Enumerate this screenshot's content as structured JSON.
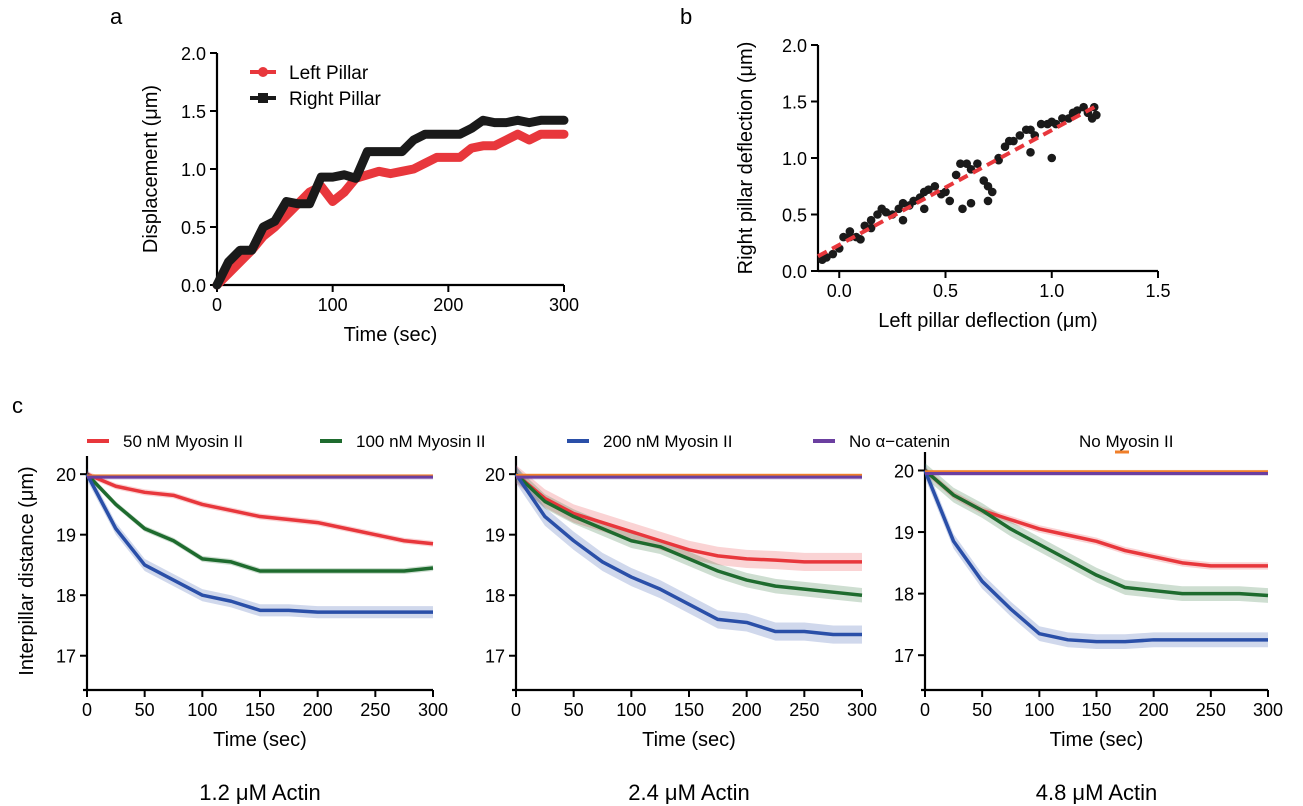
{
  "panel_labels": {
    "a": "a",
    "b": "b",
    "c": "c"
  },
  "legend_c": [
    {
      "label": "50 nM Myosin II",
      "color": "#e8373c"
    },
    {
      "label": "100 nM Myosin II",
      "color": "#1e6b2e"
    },
    {
      "label": "200 nM Myosin II",
      "color": "#2a4fa8"
    },
    {
      "label": "No α−catenin",
      "color": "#6b3fa0"
    },
    {
      "label": "No Myosin II",
      "color": "#f07f2a"
    }
  ],
  "chart_data": [
    {
      "id": "a",
      "type": "line",
      "xlabel": "Time (sec)",
      "ylabel": "Displacement (μm)",
      "xlim": [
        0,
        300
      ],
      "ylim": [
        0,
        2.0
      ],
      "xticks": [
        "0",
        "100",
        "200",
        "300"
      ],
      "yticks": [
        "0.0",
        "0.5",
        "1.0",
        "1.5",
        "2.0"
      ],
      "legend_position": "top-left",
      "series": [
        {
          "name": "Left Pillar",
          "color": "#e8373c",
          "x": [
            0,
            10,
            20,
            30,
            40,
            50,
            60,
            70,
            80,
            90,
            100,
            110,
            120,
            130,
            140,
            150,
            160,
            170,
            180,
            190,
            200,
            210,
            220,
            230,
            240,
            250,
            260,
            270,
            280,
            290,
            300
          ],
          "y": [
            0.0,
            0.1,
            0.2,
            0.3,
            0.42,
            0.5,
            0.6,
            0.7,
            0.8,
            0.85,
            0.72,
            0.8,
            0.92,
            0.95,
            0.98,
            0.96,
            0.98,
            1.0,
            1.05,
            1.1,
            1.1,
            1.1,
            1.18,
            1.2,
            1.2,
            1.25,
            1.3,
            1.25,
            1.3,
            1.3,
            1.3
          ]
        },
        {
          "name": "Right Pillar",
          "color": "#1a1a1a",
          "x": [
            0,
            10,
            20,
            30,
            40,
            50,
            60,
            70,
            80,
            90,
            100,
            110,
            120,
            130,
            140,
            150,
            160,
            170,
            180,
            190,
            200,
            210,
            220,
            230,
            240,
            250,
            260,
            270,
            280,
            290,
            300
          ],
          "y": [
            0.0,
            0.2,
            0.3,
            0.3,
            0.5,
            0.55,
            0.72,
            0.7,
            0.7,
            0.93,
            0.93,
            0.95,
            0.92,
            1.15,
            1.15,
            1.15,
            1.15,
            1.25,
            1.3,
            1.3,
            1.3,
            1.3,
            1.35,
            1.42,
            1.4,
            1.4,
            1.42,
            1.4,
            1.42,
            1.42,
            1.42
          ]
        }
      ]
    },
    {
      "id": "b",
      "type": "scatter",
      "xlabel": "Left pillar deflection (μm)",
      "ylabel": "Right pillar deflection (μm)",
      "xlim": [
        -0.1,
        1.5
      ],
      "ylim": [
        0,
        2.0
      ],
      "xticks": [
        "0.0",
        "0.5",
        "1.0",
        "1.5"
      ],
      "yticks": [
        "0.0",
        "0.5",
        "1.0",
        "1.5",
        "2.0"
      ],
      "fit_line": {
        "color": "#e8373c",
        "x": [
          -0.1,
          1.22
        ],
        "y": [
          0.13,
          1.47
        ]
      },
      "points": {
        "x": [
          -0.08,
          -0.06,
          -0.03,
          0.0,
          0.02,
          0.05,
          0.08,
          0.1,
          0.12,
          0.15,
          0.18,
          0.2,
          0.22,
          0.25,
          0.28,
          0.3,
          0.33,
          0.35,
          0.38,
          0.4,
          0.42,
          0.45,
          0.48,
          0.5,
          0.52,
          0.55,
          0.57,
          0.6,
          0.62,
          0.65,
          0.68,
          0.7,
          0.72,
          0.75,
          0.78,
          0.8,
          0.82,
          0.85,
          0.88,
          0.9,
          0.92,
          0.95,
          0.98,
          1.0,
          1.02,
          1.05,
          1.08,
          1.1,
          1.12,
          1.15,
          1.17,
          1.19,
          1.2,
          1.21,
          0.58,
          0.7,
          0.75,
          0.4,
          0.3,
          0.9,
          1.0,
          0.62,
          0.15,
          0.05
        ],
        "y": [
          0.1,
          0.12,
          0.15,
          0.2,
          0.3,
          0.35,
          0.3,
          0.28,
          0.4,
          0.45,
          0.5,
          0.55,
          0.52,
          0.5,
          0.55,
          0.6,
          0.58,
          0.62,
          0.65,
          0.7,
          0.72,
          0.75,
          0.68,
          0.7,
          0.62,
          0.85,
          0.95,
          0.95,
          0.9,
          0.95,
          0.8,
          0.75,
          0.7,
          1.0,
          1.1,
          1.15,
          1.15,
          1.2,
          1.25,
          1.25,
          1.2,
          1.3,
          1.3,
          1.32,
          1.3,
          1.35,
          1.35,
          1.4,
          1.42,
          1.45,
          1.4,
          1.35,
          1.45,
          1.38,
          0.55,
          0.62,
          0.98,
          0.55,
          0.45,
          1.05,
          1.0,
          0.6,
          0.38,
          0.3
        ]
      }
    },
    {
      "id": "c1",
      "type": "line",
      "caption": "1.2 μM Actin",
      "xlabel": "Time (sec)",
      "ylabel": "Interpillar distance (μm)",
      "xlim": [
        0,
        300
      ],
      "ylim": [
        16.5,
        20.3
      ],
      "xticks": [
        "0",
        "50",
        "100",
        "150",
        "200",
        "250",
        "300"
      ],
      "yticks": [
        "17",
        "18",
        "19",
        "20"
      ],
      "x": [
        0,
        25,
        50,
        75,
        100,
        125,
        150,
        175,
        200,
        225,
        250,
        275,
        300
      ],
      "series": [
        {
          "name": "50 nM Myosin II",
          "color": "#e8373c",
          "values": [
            20.0,
            19.8,
            19.7,
            19.65,
            19.5,
            19.4,
            19.3,
            19.25,
            19.2,
            19.1,
            19.0,
            18.9,
            18.85
          ],
          "band": 0.05
        },
        {
          "name": "100 nM Myosin II",
          "color": "#1e6b2e",
          "values": [
            20.0,
            19.5,
            19.1,
            18.9,
            18.6,
            18.55,
            18.4,
            18.4,
            18.4,
            18.4,
            18.4,
            18.4,
            18.45
          ],
          "band": 0.05
        },
        {
          "name": "200 nM Myosin II",
          "color": "#2a4fa8",
          "values": [
            20.0,
            19.1,
            18.5,
            18.25,
            18.0,
            17.9,
            17.75,
            17.75,
            17.72,
            17.72,
            17.72,
            17.72,
            17.72
          ],
          "band": 0.1
        },
        {
          "name": "No α−catenin",
          "color": "#6b3fa0",
          "values": [
            19.95,
            19.95,
            19.95,
            19.95,
            19.95,
            19.95,
            19.95,
            19.95,
            19.95,
            19.95,
            19.95,
            19.95,
            19.95
          ],
          "band": 0.04
        },
        {
          "name": "No Myosin II",
          "color": "#f07f2a",
          "values": [
            19.97,
            19.97,
            19.97,
            19.97,
            19.97,
            19.97,
            19.97,
            19.97,
            19.97,
            19.97,
            19.97,
            19.97,
            19.97
          ],
          "band": 0.03
        }
      ]
    },
    {
      "id": "c2",
      "type": "line",
      "caption": "2.4 μM Actin",
      "xlabel": "Time (sec)",
      "ylabel": "",
      "xlim": [
        0,
        300
      ],
      "ylim": [
        16.5,
        20.3
      ],
      "xticks": [
        "0",
        "50",
        "100",
        "150",
        "200",
        "250",
        "300"
      ],
      "yticks": [
        "17",
        "18",
        "19",
        "20"
      ],
      "x": [
        0,
        25,
        50,
        75,
        100,
        125,
        150,
        175,
        200,
        225,
        250,
        275,
        300
      ],
      "series": [
        {
          "name": "50 nM Myosin II",
          "color": "#e8373c",
          "values": [
            20.0,
            19.6,
            19.35,
            19.2,
            19.05,
            18.9,
            18.75,
            18.65,
            18.6,
            18.58,
            18.55,
            18.55,
            18.55
          ],
          "band": 0.15
        },
        {
          "name": "100 nM Myosin II",
          "color": "#1e6b2e",
          "values": [
            20.0,
            19.55,
            19.3,
            19.1,
            18.9,
            18.8,
            18.6,
            18.4,
            18.25,
            18.15,
            18.1,
            18.05,
            18.0
          ],
          "band": 0.12
        },
        {
          "name": "200 nM Myosin II",
          "color": "#2a4fa8",
          "values": [
            20.0,
            19.3,
            18.9,
            18.55,
            18.3,
            18.1,
            17.85,
            17.6,
            17.55,
            17.4,
            17.4,
            17.35,
            17.35
          ],
          "band": 0.15
        },
        {
          "name": "No α−catenin",
          "color": "#6b3fa0",
          "values": [
            19.95,
            19.95,
            19.95,
            19.95,
            19.95,
            19.95,
            19.95,
            19.95,
            19.95,
            19.95,
            19.95,
            19.95,
            19.95
          ],
          "band": 0.04
        },
        {
          "name": "No Myosin II",
          "color": "#f07f2a",
          "values": [
            19.98,
            19.98,
            19.98,
            19.98,
            19.98,
            19.98,
            19.98,
            19.98,
            19.98,
            19.98,
            19.98,
            19.98,
            19.98
          ],
          "band": 0.03
        }
      ]
    },
    {
      "id": "c3",
      "type": "line",
      "caption": "4.8 μM Actin",
      "xlabel": "Time (sec)",
      "ylabel": "",
      "xlim": [
        0,
        300
      ],
      "ylim": [
        16.5,
        20.3
      ],
      "xticks": [
        "0",
        "50",
        "100",
        "150",
        "200",
        "250",
        "300"
      ],
      "yticks": [
        "17",
        "18",
        "19",
        "20"
      ],
      "x": [
        0,
        25,
        50,
        75,
        100,
        125,
        150,
        175,
        200,
        225,
        250,
        275,
        300
      ],
      "series": [
        {
          "name": "50 nM Myosin II",
          "color": "#e8373c",
          "values": [
            20.0,
            19.6,
            19.35,
            19.2,
            19.05,
            18.95,
            18.85,
            18.7,
            18.6,
            18.5,
            18.45,
            18.45,
            18.45
          ],
          "band": 0.06
        },
        {
          "name": "100 nM Myosin II",
          "color": "#1e6b2e",
          "values": [
            20.0,
            19.6,
            19.35,
            19.05,
            18.8,
            18.55,
            18.3,
            18.1,
            18.05,
            18.0,
            18.0,
            18.0,
            17.97
          ],
          "band": 0.12
        },
        {
          "name": "200 nM Myosin II",
          "color": "#2a4fa8",
          "values": [
            20.0,
            18.85,
            18.2,
            17.75,
            17.35,
            17.25,
            17.22,
            17.22,
            17.25,
            17.25,
            17.25,
            17.25,
            17.25
          ],
          "band": 0.12
        },
        {
          "name": "No α−catenin",
          "color": "#6b3fa0",
          "values": [
            19.95,
            19.95,
            19.95,
            19.95,
            19.95,
            19.95,
            19.95,
            19.95,
            19.95,
            19.95,
            19.95,
            19.95,
            19.95
          ],
          "band": 0.04
        },
        {
          "name": "No Myosin II",
          "color": "#f07f2a",
          "values": [
            19.98,
            19.98,
            19.98,
            19.98,
            19.98,
            19.98,
            19.98,
            19.98,
            19.98,
            19.98,
            19.98,
            19.98,
            19.98
          ],
          "band": 0.03
        }
      ]
    }
  ]
}
